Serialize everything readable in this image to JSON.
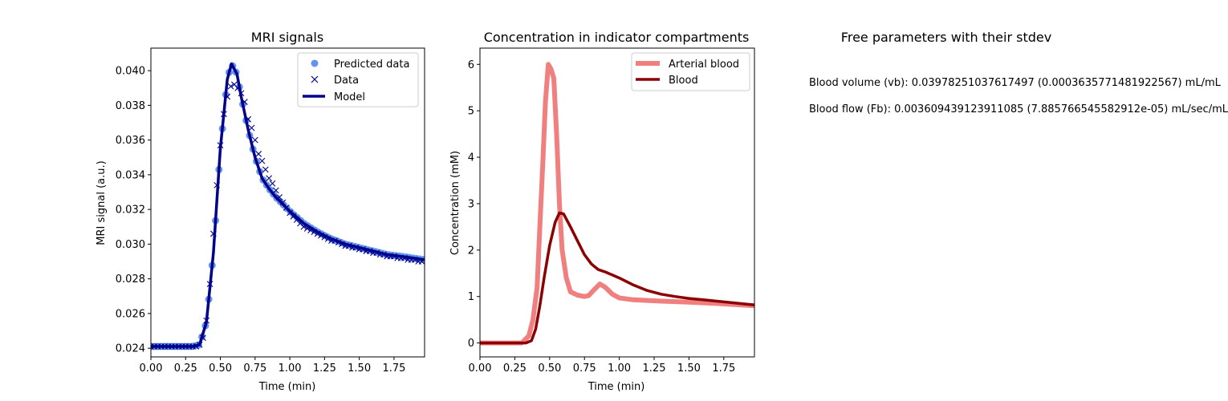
{
  "chart_data": [
    {
      "type": "line",
      "title": "MRI signals",
      "xlabel": "Time (min)",
      "ylabel": "MRI signal (a.u.)",
      "xlim": [
        0,
        1.97
      ],
      "ylim": [
        0.0235,
        0.0413
      ],
      "xticks": [
        "0.00",
        "0.25",
        "0.50",
        "0.75",
        "1.00",
        "1.25",
        "1.50",
        "1.75"
      ],
      "yticks": [
        "0.024",
        "0.026",
        "0.028",
        "0.030",
        "0.032",
        "0.034",
        "0.036",
        "0.038",
        "0.040"
      ],
      "legend_position": "top-right",
      "series": [
        {
          "name": "Predicted data",
          "style": "markers-circle",
          "color": "#6495ED"
        },
        {
          "name": "Data",
          "style": "markers-x",
          "color": "#00008B"
        },
        {
          "name": "Model",
          "style": "line",
          "color": "#00008B"
        }
      ],
      "model_points": [
        [
          0.0,
          0.0241
        ],
        [
          0.3,
          0.0241
        ],
        [
          0.35,
          0.0242
        ],
        [
          0.4,
          0.0255
        ],
        [
          0.45,
          0.0295
        ],
        [
          0.5,
          0.0355
        ],
        [
          0.55,
          0.0395
        ],
        [
          0.58,
          0.0404
        ],
        [
          0.62,
          0.0398
        ],
        [
          0.65,
          0.0385
        ],
        [
          0.7,
          0.0366
        ],
        [
          0.75,
          0.035
        ],
        [
          0.8,
          0.0338
        ],
        [
          0.85,
          0.0332
        ],
        [
          0.9,
          0.0327
        ],
        [
          1.0,
          0.0319
        ],
        [
          1.1,
          0.0312
        ],
        [
          1.2,
          0.0307
        ],
        [
          1.3,
          0.0303
        ],
        [
          1.4,
          0.03
        ],
        [
          1.5,
          0.0298
        ],
        [
          1.6,
          0.0296
        ],
        [
          1.7,
          0.0294
        ],
        [
          1.8,
          0.0293
        ],
        [
          1.97,
          0.0291
        ]
      ],
      "data_points": [
        [
          0.0,
          0.0241
        ],
        [
          0.025,
          0.0241
        ],
        [
          0.05,
          0.0241
        ],
        [
          0.075,
          0.0241
        ],
        [
          0.1,
          0.0241
        ],
        [
          0.125,
          0.0241
        ],
        [
          0.15,
          0.0241
        ],
        [
          0.175,
          0.0241
        ],
        [
          0.2,
          0.0241
        ],
        [
          0.225,
          0.0241
        ],
        [
          0.25,
          0.0241
        ],
        [
          0.275,
          0.0241
        ],
        [
          0.3,
          0.0241
        ],
        [
          0.325,
          0.0241
        ],
        [
          0.35,
          0.0242
        ],
        [
          0.375,
          0.0246
        ],
        [
          0.4,
          0.0256
        ],
        [
          0.425,
          0.0277
        ],
        [
          0.45,
          0.0306
        ],
        [
          0.475,
          0.0334
        ],
        [
          0.5,
          0.0357
        ],
        [
          0.525,
          0.0375
        ],
        [
          0.55,
          0.0385
        ],
        [
          0.575,
          0.0391
        ],
        [
          0.6,
          0.0392
        ],
        [
          0.625,
          0.039
        ],
        [
          0.65,
          0.0387
        ],
        [
          0.675,
          0.0382
        ],
        [
          0.7,
          0.0372
        ],
        [
          0.725,
          0.0367
        ],
        [
          0.75,
          0.036
        ],
        [
          0.775,
          0.0352
        ],
        [
          0.8,
          0.0348
        ],
        [
          0.825,
          0.0343
        ],
        [
          0.85,
          0.0338
        ],
        [
          0.875,
          0.0335
        ],
        [
          0.9,
          0.0331
        ],
        [
          0.925,
          0.0327
        ],
        [
          0.95,
          0.0324
        ],
        [
          0.975,
          0.0321
        ],
        [
          1.0,
          0.0318
        ],
        [
          1.025,
          0.0316
        ],
        [
          1.05,
          0.0314
        ],
        [
          1.075,
          0.0312
        ],
        [
          1.1,
          0.031
        ],
        [
          1.125,
          0.0309
        ],
        [
          1.15,
          0.0308
        ],
        [
          1.175,
          0.0307
        ],
        [
          1.2,
          0.0306
        ],
        [
          1.225,
          0.0305
        ],
        [
          1.25,
          0.0304
        ],
        [
          1.275,
          0.0303
        ],
        [
          1.3,
          0.0302
        ],
        [
          1.325,
          0.0302
        ],
        [
          1.35,
          0.0301
        ],
        [
          1.375,
          0.03
        ],
        [
          1.4,
          0.0299
        ],
        [
          1.425,
          0.0299
        ],
        [
          1.45,
          0.0298
        ],
        [
          1.475,
          0.0298
        ],
        [
          1.5,
          0.0297
        ],
        [
          1.525,
          0.0297
        ],
        [
          1.55,
          0.0296
        ],
        [
          1.575,
          0.0296
        ],
        [
          1.6,
          0.0295
        ],
        [
          1.625,
          0.0295
        ],
        [
          1.65,
          0.0294
        ],
        [
          1.675,
          0.0294
        ],
        [
          1.7,
          0.0293
        ],
        [
          1.725,
          0.0293
        ],
        [
          1.75,
          0.0293
        ],
        [
          1.775,
          0.0292
        ],
        [
          1.8,
          0.0292
        ],
        [
          1.825,
          0.0292
        ],
        [
          1.85,
          0.0291
        ],
        [
          1.875,
          0.0291
        ],
        [
          1.9,
          0.0291
        ],
        [
          1.925,
          0.029
        ],
        [
          1.95,
          0.029
        ]
      ]
    },
    {
      "type": "line",
      "title": "Concentration in indicator compartments",
      "xlabel": "Time (min)",
      "ylabel": "Concentration (mM)",
      "xlim": [
        0,
        1.97
      ],
      "ylim": [
        -0.3,
        6.35
      ],
      "xticks": [
        "0.00",
        "0.25",
        "0.50",
        "0.75",
        "1.00",
        "1.25",
        "1.50",
        "1.75"
      ],
      "yticks": [
        "0",
        "1",
        "2",
        "3",
        "4",
        "5",
        "6"
      ],
      "legend_position": "top-right",
      "series": [
        {
          "name": "Arterial blood",
          "color": "#F08080",
          "points": [
            [
              0.0,
              0.0
            ],
            [
              0.3,
              0.0
            ],
            [
              0.35,
              0.15
            ],
            [
              0.38,
              0.5
            ],
            [
              0.41,
              1.2
            ],
            [
              0.43,
              2.5
            ],
            [
              0.45,
              3.8
            ],
            [
              0.47,
              5.2
            ],
            [
              0.49,
              6.0
            ],
            [
              0.51,
              5.9
            ],
            [
              0.53,
              5.7
            ],
            [
              0.55,
              4.5
            ],
            [
              0.57,
              3.0
            ],
            [
              0.59,
              2.0
            ],
            [
              0.62,
              1.4
            ],
            [
              0.65,
              1.1
            ],
            [
              0.7,
              1.03
            ],
            [
              0.75,
              1.0
            ],
            [
              0.78,
              1.02
            ],
            [
              0.82,
              1.15
            ],
            [
              0.86,
              1.27
            ],
            [
              0.9,
              1.2
            ],
            [
              0.95,
              1.05
            ],
            [
              1.0,
              0.97
            ],
            [
              1.1,
              0.93
            ],
            [
              1.3,
              0.9
            ],
            [
              1.5,
              0.88
            ],
            [
              1.7,
              0.85
            ],
            [
              1.97,
              0.8
            ]
          ]
        },
        {
          "name": "Blood",
          "color": "#8B0000",
          "points": [
            [
              0.0,
              0.0
            ],
            [
              0.33,
              0.0
            ],
            [
              0.37,
              0.05
            ],
            [
              0.4,
              0.3
            ],
            [
              0.43,
              0.8
            ],
            [
              0.46,
              1.4
            ],
            [
              0.5,
              2.1
            ],
            [
              0.54,
              2.6
            ],
            [
              0.57,
              2.8
            ],
            [
              0.6,
              2.78
            ],
            [
              0.65,
              2.5
            ],
            [
              0.7,
              2.2
            ],
            [
              0.75,
              1.9
            ],
            [
              0.8,
              1.7
            ],
            [
              0.85,
              1.58
            ],
            [
              0.9,
              1.53
            ],
            [
              1.0,
              1.4
            ],
            [
              1.1,
              1.25
            ],
            [
              1.2,
              1.13
            ],
            [
              1.3,
              1.05
            ],
            [
              1.4,
              1.0
            ],
            [
              1.5,
              0.96
            ],
            [
              1.6,
              0.93
            ],
            [
              1.7,
              0.9
            ],
            [
              1.8,
              0.87
            ],
            [
              1.97,
              0.82
            ]
          ]
        }
      ]
    }
  ],
  "params": {
    "title": "Free parameters with their stdev",
    "lines": [
      "Blood volume (vb): 0.03978251037617497 (0.0003635771481922567) mL/mL",
      "Blood flow (Fb): 0.003609439123911085 (7.885766545582912e-05) mL/sec/mL"
    ]
  }
}
